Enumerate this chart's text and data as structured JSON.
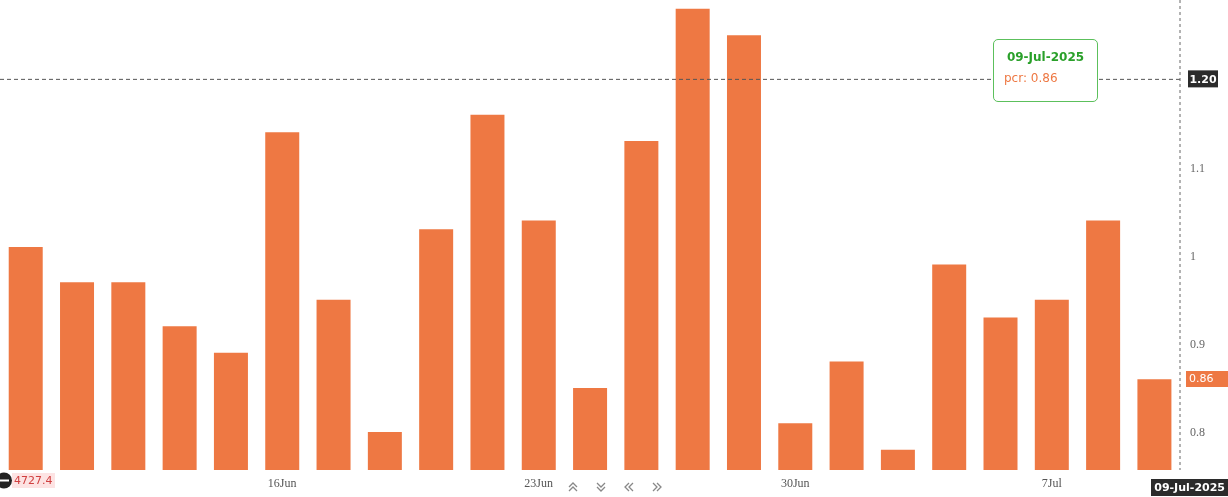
{
  "chart_data": {
    "type": "bar",
    "categories": [
      null,
      null,
      null,
      null,
      null,
      "16Jun",
      null,
      null,
      null,
      null,
      "23Jun",
      null,
      null,
      null,
      null,
      "30Jun",
      null,
      null,
      null,
      null,
      "7Jul",
      null,
      null
    ],
    "values": [
      1.01,
      0.97,
      0.97,
      0.92,
      0.89,
      1.14,
      0.95,
      0.8,
      1.03,
      1.16,
      1.04,
      0.85,
      1.13,
      1.28,
      1.25,
      0.81,
      0.88,
      0.78,
      0.99,
      0.93,
      0.95,
      1.04,
      0.86
    ],
    "color": "#ee7843",
    "ylim": [
      0.757,
      1.29
    ],
    "yticks": [
      0.8,
      0.9,
      1,
      1.1
    ],
    "ref_lines": [
      {
        "axis": "y",
        "value": 1.2,
        "label": "1.20",
        "line_style": "dashed",
        "color": "#555555"
      }
    ],
    "annotations": [
      "09-Jul-2025",
      "pcr: 0.86",
      "0.86",
      "09-Jul-2025",
      "4727.4"
    ]
  }
}
